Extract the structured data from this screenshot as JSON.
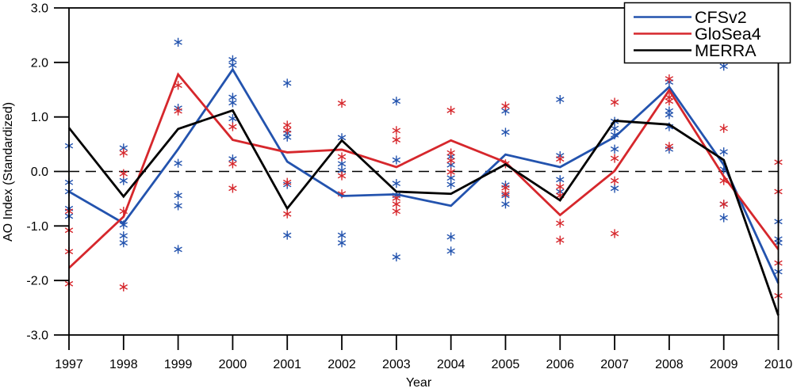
{
  "chart_data": {
    "type": "line",
    "title": "",
    "xlabel": "Year",
    "ylabel": "AO Index (Standardized)",
    "x": [
      1997,
      1998,
      1999,
      2000,
      2001,
      2002,
      2003,
      2004,
      2005,
      2006,
      2007,
      2008,
      2009,
      2010
    ],
    "ylim": [
      -3.0,
      3.0
    ],
    "yticks": [
      3.0,
      2.0,
      1.0,
      0.0,
      -1.0,
      -2.0,
      -3.0
    ],
    "ytick_labels": [
      "3.0",
      "2.0",
      "1.0",
      "0.0",
      "-1.0",
      "-2.0",
      "-3.0"
    ],
    "grid": false,
    "zero_line_style": "dashed-black",
    "legend": {
      "position": "top-right",
      "entries": [
        {
          "label": "CFSv2",
          "color": "#2353ae"
        },
        {
          "label": "GloSea4",
          "color": "#d6272c"
        },
        {
          "label": "MERRA",
          "color": "#000000"
        }
      ]
    },
    "series": [
      {
        "name": "CFSv2",
        "color": "#2353ae",
        "values": [
          -0.37,
          -0.95,
          0.41,
          1.87,
          0.18,
          -0.45,
          -0.42,
          -0.63,
          0.31,
          0.08,
          0.63,
          1.55,
          0.12,
          -2.05
        ]
      },
      {
        "name": "GloSea4",
        "color": "#d6272c",
        "values": [
          -1.77,
          -0.83,
          1.78,
          0.58,
          0.35,
          0.4,
          0.08,
          0.57,
          0.17,
          -0.8,
          0.01,
          1.49,
          -0.09,
          -1.43
        ]
      },
      {
        "name": "MERRA",
        "color": "#000000",
        "values": [
          0.8,
          -0.46,
          0.78,
          1.12,
          -0.68,
          0.57,
          -0.37,
          -0.41,
          0.13,
          -0.53,
          0.93,
          0.86,
          0.21,
          -2.64
        ]
      }
    ],
    "ensemble_markers": [
      {
        "name": "CFSv2 ensemble members",
        "color": "#2353ae",
        "marker": "asterisk",
        "values_by_year": [
          [
            0.47,
            -0.2,
            -0.37,
            -0.68,
            -0.82
          ],
          [
            0.43,
            -0.17,
            -0.98,
            -1.18,
            -1.31
          ],
          [
            2.37,
            1.16,
            0.15,
            -0.44,
            -0.63,
            -1.43
          ],
          [
            2.05,
            1.95,
            1.36,
            1.26,
            0.97,
            0.23
          ],
          [
            1.62,
            0.7,
            0.63,
            -0.24,
            -1.17
          ],
          [
            0.62,
            0.14,
            0.02,
            -1.17,
            -1.31
          ],
          [
            1.29,
            0.21,
            -0.22,
            -0.44,
            -1.57
          ],
          [
            0.27,
            0.12,
            -0.12,
            -0.24,
            -1.2,
            -1.46
          ],
          [
            1.11,
            0.72,
            -0.25,
            -0.44,
            -0.6
          ],
          [
            1.32,
            0.29,
            -0.15,
            -0.37
          ],
          [
            0.92,
            0.79,
            0.67,
            0.41,
            -0.31
          ],
          [
            1.64,
            1.11,
            1.04,
            0.82,
            0.41
          ],
          [
            1.93,
            0.36,
            0.04,
            -0.6,
            -0.85
          ],
          [
            -0.92,
            -1.24,
            -1.31,
            -1.84
          ]
        ]
      },
      {
        "name": "GloSea4 ensemble members",
        "color": "#d6272c",
        "marker": "asterisk",
        "values_by_year": [
          [
            -0.73,
            -1.08,
            -1.47,
            -2.06
          ],
          [
            0.34,
            -0.04,
            -0.73,
            -2.12
          ],
          [
            1.58,
            1.11
          ],
          [
            0.82,
            0.14,
            -0.31
          ],
          [
            0.85,
            0.76,
            -0.2,
            -0.78
          ],
          [
            1.25,
            0.27,
            -0.08,
            -0.41
          ],
          [
            0.75,
            0.58,
            -0.49,
            -0.6,
            -0.73
          ],
          [
            1.12,
            0.34,
            0.2,
            -0.01
          ],
          [
            1.2,
            0.14,
            -0.3,
            -0.41
          ],
          [
            0.23,
            -0.28,
            -0.44,
            -0.95,
            -1.26
          ],
          [
            1.27,
            0.24,
            -0.17,
            -1.14
          ],
          [
            1.7,
            1.36,
            1.29,
            0.46
          ],
          [
            0.79,
            -0.17,
            -0.6
          ],
          [
            0.17,
            -0.37,
            -1.68,
            -2.28
          ]
        ]
      }
    ]
  }
}
